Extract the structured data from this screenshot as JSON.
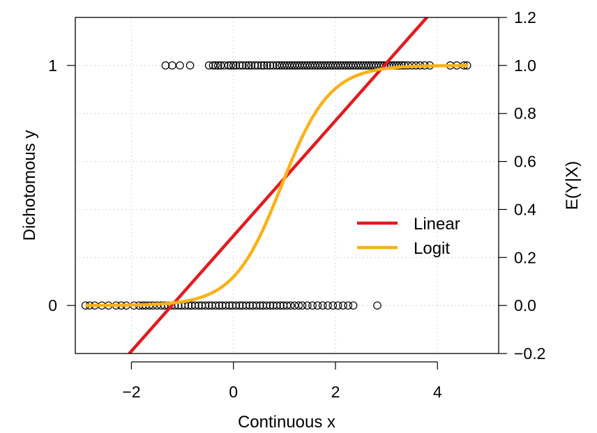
{
  "chart_data": {
    "type": "scatter",
    "xlabel": "Continuous x",
    "ylabel_left": "Dichotomous y",
    "ylabel_right": "E(Y|X)",
    "xlim": [
      -3.1,
      5.2
    ],
    "ylim": [
      -0.2,
      1.2
    ],
    "x_ticks": [
      -2,
      0,
      2,
      4
    ],
    "x_tick_labels": [
      "−2",
      "0",
      "2",
      "4"
    ],
    "y_left_ticks": [
      0,
      1
    ],
    "y_left_tick_labels": [
      "0",
      "1"
    ],
    "y_right_ticks": [
      -0.2,
      0.0,
      0.2,
      0.4,
      0.6,
      0.8,
      1.0,
      1.2
    ],
    "y_right_tick_labels": [
      "−0.2",
      "0.0",
      "0.2",
      "0.4",
      "0.6",
      "0.8",
      "1.0",
      "1.2"
    ],
    "grid": true,
    "legend_position": "center-right",
    "legend": [
      {
        "label": "Linear",
        "color": "#e41a1c"
      },
      {
        "label": "Logit",
        "color": "#fbb117"
      }
    ],
    "lines": {
      "linear": {
        "name": "Linear",
        "color": "#e41a1c",
        "intercept": 0.29,
        "slope": 0.24
      },
      "logit": {
        "name": "Logit",
        "color": "#fbb117",
        "intercept": -2.0,
        "slope": 2.12
      }
    },
    "points_y1_x": [
      -1.33,
      -1.2,
      -1.05,
      -0.85,
      -0.48,
      -0.4,
      -0.35,
      -0.3,
      -0.25,
      -0.18,
      -0.1,
      -0.05,
      0.0,
      0.05,
      0.12,
      0.18,
      0.25,
      0.3,
      0.35,
      0.42,
      0.48,
      0.55,
      0.6,
      0.66,
      0.72,
      0.78,
      0.85,
      0.9,
      0.95,
      1.0,
      1.05,
      1.1,
      1.15,
      1.2,
      1.25,
      1.3,
      1.35,
      1.4,
      1.45,
      1.5,
      1.55,
      1.6,
      1.65,
      1.7,
      1.75,
      1.8,
      1.85,
      1.9,
      1.95,
      2.0,
      2.05,
      2.1,
      2.15,
      2.2,
      2.25,
      2.3,
      2.35,
      2.4,
      2.45,
      2.5,
      2.55,
      2.6,
      2.65,
      2.7,
      2.75,
      2.8,
      2.85,
      2.9,
      2.95,
      3.0,
      3.05,
      3.1,
      3.15,
      3.2,
      3.25,
      3.3,
      3.35,
      3.42,
      3.5,
      3.58,
      3.66,
      3.75,
      3.85,
      4.25,
      4.38,
      4.52,
      4.58
    ],
    "points_y0_x": [
      -2.9,
      -2.82,
      -2.72,
      -2.58,
      -2.45,
      -2.3,
      -2.2,
      -2.1,
      -1.95,
      -1.85,
      -1.78,
      -1.72,
      -1.65,
      -1.58,
      -1.5,
      -1.42,
      -1.35,
      -1.28,
      -1.22,
      -1.15,
      -1.08,
      -1.02,
      -0.95,
      -0.88,
      -0.82,
      -0.75,
      -0.68,
      -0.62,
      -0.55,
      -0.48,
      -0.42,
      -0.35,
      -0.28,
      -0.22,
      -0.15,
      -0.08,
      -0.02,
      0.05,
      0.12,
      0.18,
      0.25,
      0.32,
      0.38,
      0.45,
      0.52,
      0.58,
      0.65,
      0.72,
      0.78,
      0.85,
      0.92,
      0.98,
      1.05,
      1.12,
      1.2,
      1.28,
      1.35,
      1.45,
      1.55,
      1.65,
      1.75,
      1.85,
      1.95,
      2.05,
      2.15,
      2.25,
      2.35,
      2.82
    ]
  }
}
